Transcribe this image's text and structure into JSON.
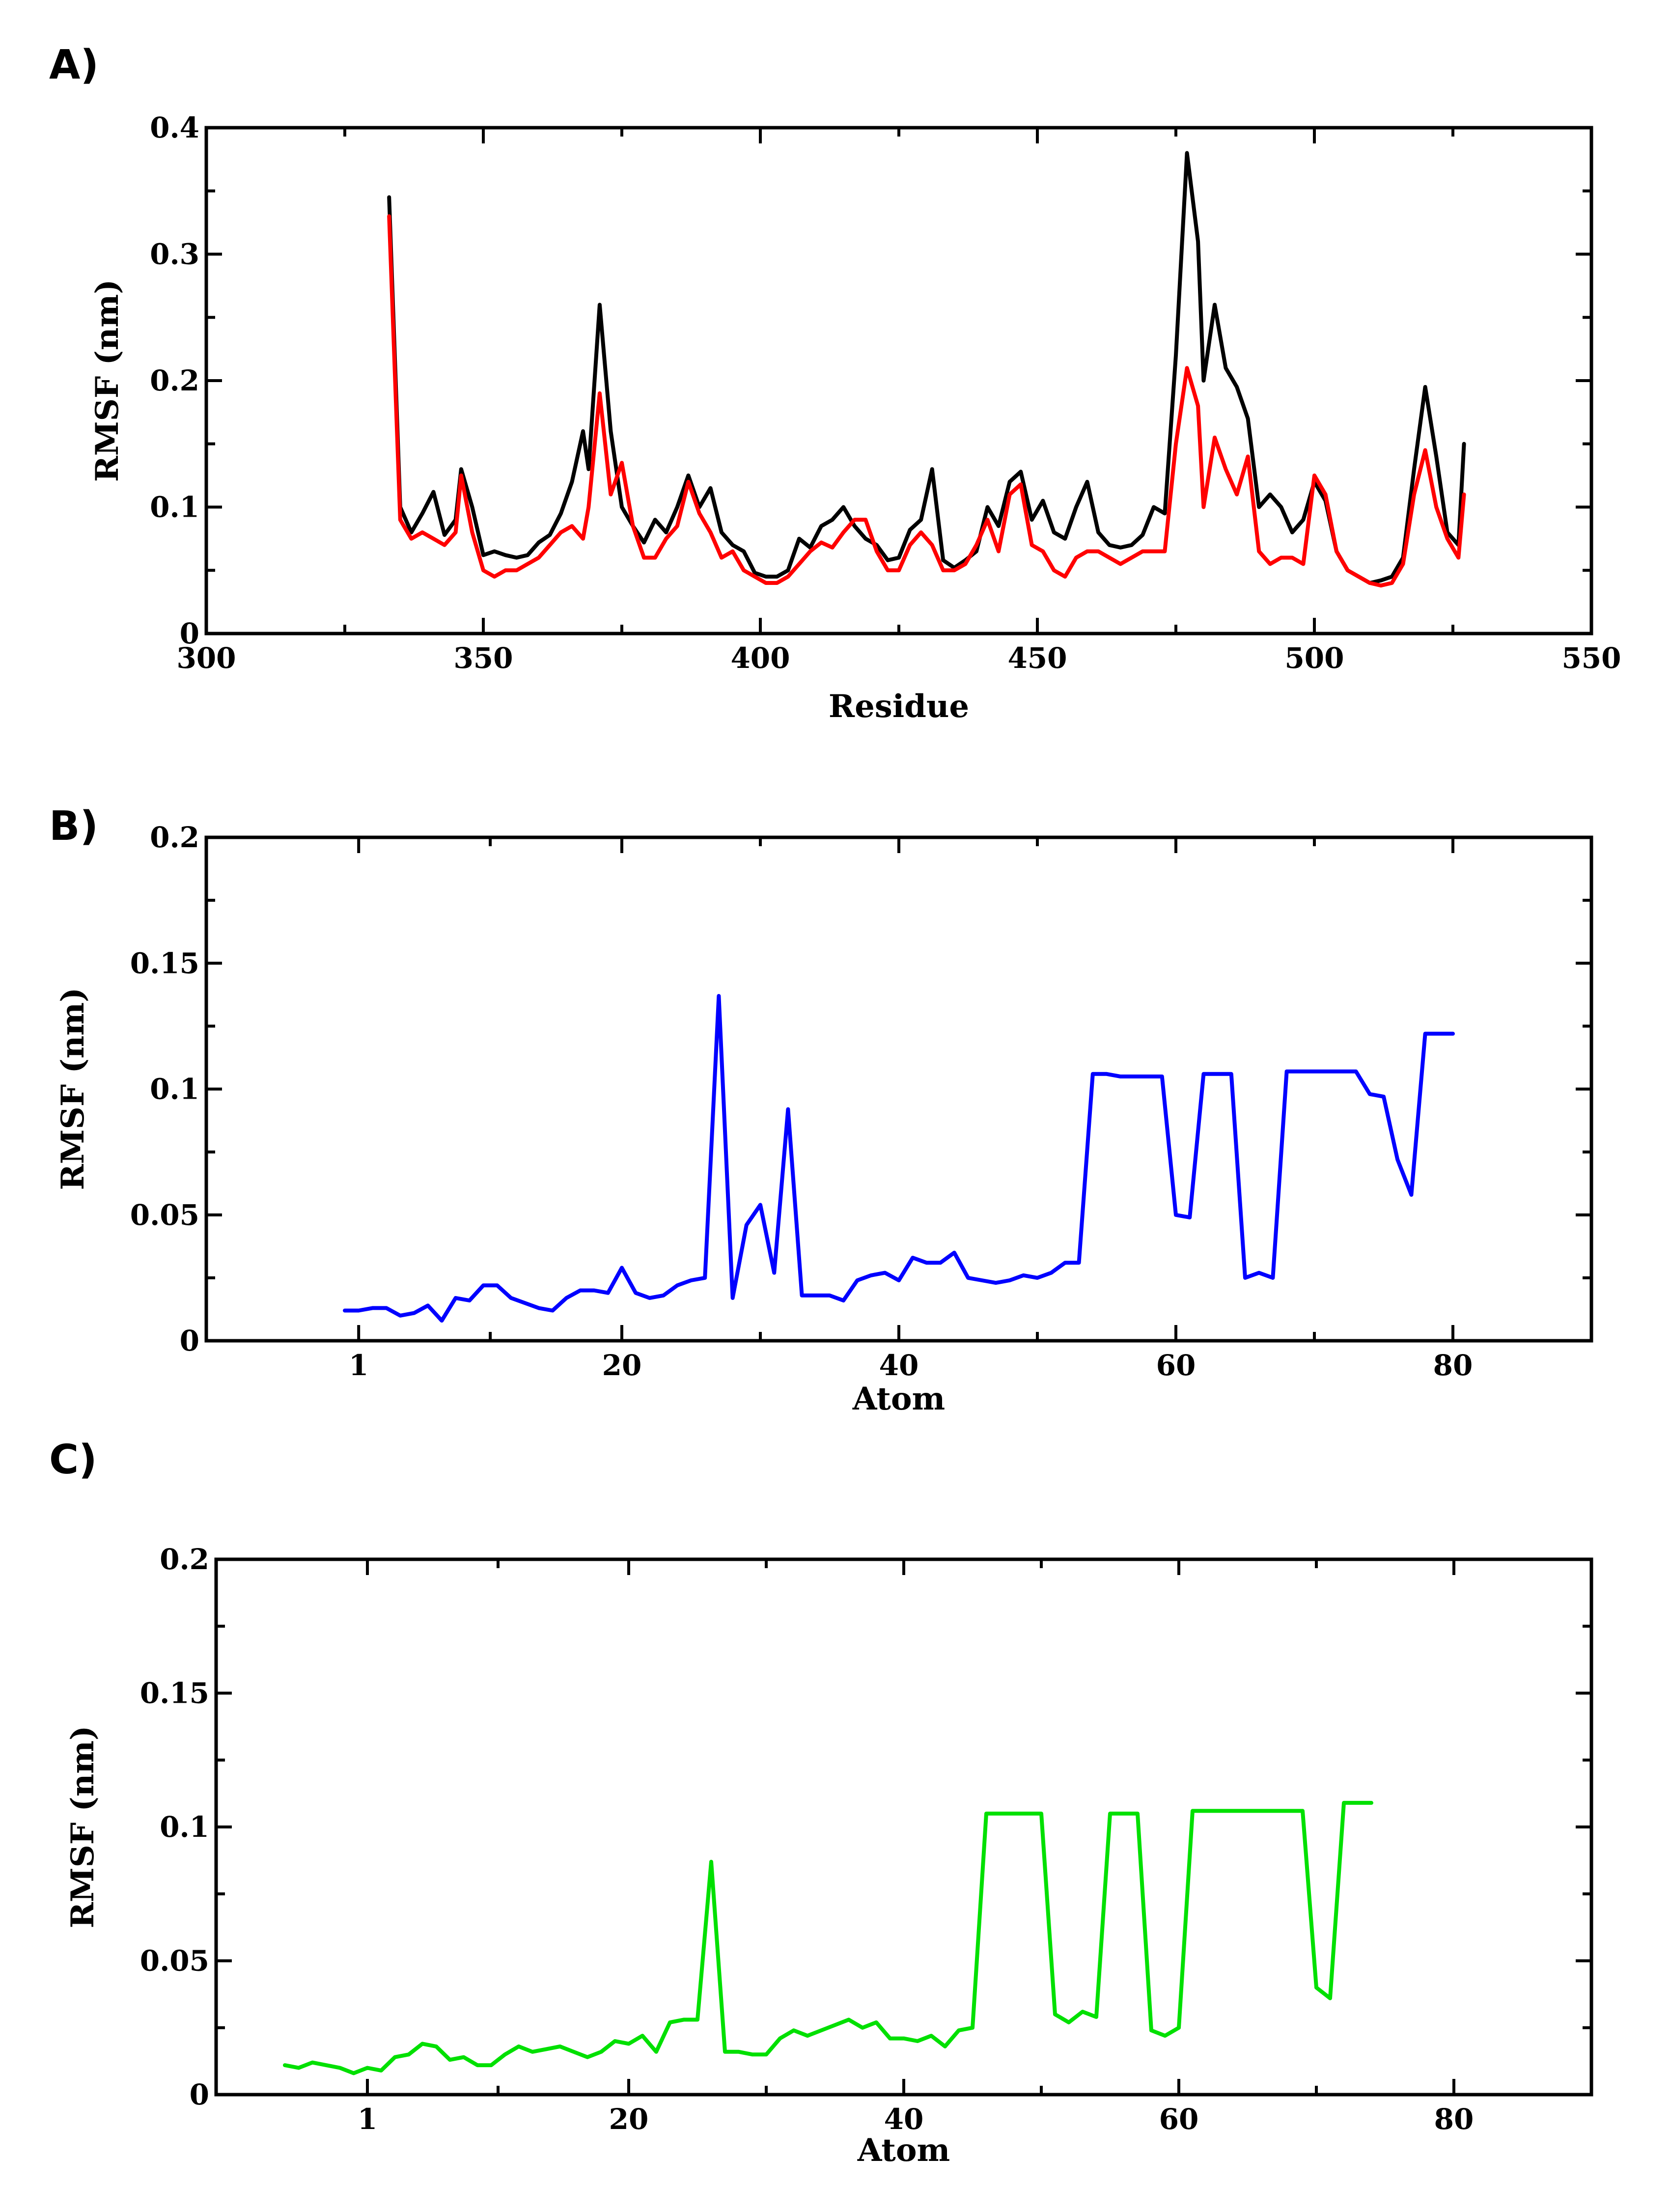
{
  "chart_data": [
    {
      "panel_label": "A)",
      "type": "line",
      "title": "",
      "xlabel": "Residue",
      "ylabel": "RMSF (nm)",
      "xlim": [
        300,
        550
      ],
      "ylim": [
        0,
        0.4
      ],
      "x_ticks": [
        300,
        350,
        400,
        450,
        500,
        550
      ],
      "x_tick_labels": [
        "300",
        "350",
        "400",
        "450",
        "500",
        "550"
      ],
      "y_ticks": [
        0,
        0.1,
        0.2,
        0.3,
        0.4
      ],
      "y_tick_labels": [
        "0",
        "0.1",
        "0.2",
        "0.3",
        "0.4"
      ],
      "grid": false,
      "series": [
        {
          "name": "black",
          "color": "#000000",
          "x": [
            333,
            335,
            337,
            339,
            341,
            343,
            345,
            346,
            348,
            350,
            352,
            354,
            356,
            358,
            360,
            362,
            364,
            366,
            368,
            369,
            371,
            373,
            375,
            377,
            379,
            381,
            383,
            385,
            387,
            389,
            391,
            393,
            395,
            397,
            399,
            401,
            403,
            405,
            407,
            409,
            411,
            413,
            415,
            417,
            419,
            421,
            423,
            425,
            427,
            429,
            431,
            433,
            435,
            437,
            439,
            441,
            443,
            445,
            447,
            449,
            451,
            453,
            455,
            457,
            459,
            461,
            463,
            465,
            467,
            469,
            471,
            473,
            475,
            477,
            479,
            480,
            482,
            484,
            486,
            488,
            490,
            492,
            494,
            496,
            498,
            500,
            502,
            504,
            506,
            508,
            510,
            512,
            514,
            516,
            518,
            520,
            522,
            524,
            526,
            527
          ],
          "y": [
            0.345,
            0.1,
            0.08,
            0.095,
            0.112,
            0.078,
            0.09,
            0.13,
            0.1,
            0.062,
            0.065,
            0.062,
            0.06,
            0.062,
            0.072,
            0.078,
            0.095,
            0.12,
            0.16,
            0.13,
            0.26,
            0.16,
            0.1,
            0.085,
            0.072,
            0.09,
            0.08,
            0.1,
            0.125,
            0.1,
            0.115,
            0.08,
            0.07,
            0.065,
            0.048,
            0.045,
            0.045,
            0.05,
            0.075,
            0.068,
            0.085,
            0.09,
            0.1,
            0.085,
            0.075,
            0.07,
            0.058,
            0.06,
            0.082,
            0.09,
            0.13,
            0.058,
            0.052,
            0.058,
            0.065,
            0.1,
            0.085,
            0.12,
            0.128,
            0.09,
            0.105,
            0.08,
            0.075,
            0.1,
            0.12,
            0.08,
            0.07,
            0.068,
            0.07,
            0.078,
            0.1,
            0.095,
            0.22,
            0.38,
            0.31,
            0.2,
            0.26,
            0.21,
            0.195,
            0.17,
            0.1,
            0.11,
            0.1,
            0.08,
            0.09,
            0.12,
            0.105,
            0.065,
            0.05,
            0.045,
            0.04,
            0.042,
            0.045,
            0.06,
            0.13,
            0.195,
            0.14,
            0.08,
            0.07,
            0.15
          ]
        },
        {
          "name": "red",
          "color": "#ff0000",
          "x": [
            333,
            335,
            337,
            339,
            341,
            343,
            345,
            346,
            348,
            350,
            352,
            354,
            356,
            358,
            360,
            362,
            364,
            366,
            368,
            369,
            371,
            373,
            375,
            377,
            379,
            381,
            383,
            385,
            387,
            389,
            391,
            393,
            395,
            397,
            399,
            401,
            403,
            405,
            407,
            409,
            411,
            413,
            415,
            417,
            419,
            421,
            423,
            425,
            427,
            429,
            431,
            433,
            435,
            437,
            439,
            441,
            443,
            445,
            447,
            449,
            451,
            453,
            455,
            457,
            459,
            461,
            463,
            465,
            467,
            469,
            471,
            473,
            475,
            477,
            479,
            480,
            482,
            484,
            486,
            488,
            490,
            492,
            494,
            496,
            498,
            500,
            502,
            504,
            506,
            508,
            510,
            512,
            514,
            516,
            518,
            520,
            522,
            524,
            526,
            527
          ],
          "y": [
            0.33,
            0.09,
            0.075,
            0.08,
            0.075,
            0.07,
            0.08,
            0.125,
            0.08,
            0.05,
            0.045,
            0.05,
            0.05,
            0.055,
            0.06,
            0.07,
            0.08,
            0.085,
            0.075,
            0.1,
            0.19,
            0.11,
            0.135,
            0.085,
            0.06,
            0.06,
            0.075,
            0.085,
            0.12,
            0.095,
            0.08,
            0.06,
            0.065,
            0.05,
            0.045,
            0.04,
            0.04,
            0.045,
            0.055,
            0.065,
            0.072,
            0.068,
            0.08,
            0.09,
            0.09,
            0.065,
            0.05,
            0.05,
            0.07,
            0.08,
            0.07,
            0.05,
            0.05,
            0.055,
            0.07,
            0.09,
            0.065,
            0.11,
            0.118,
            0.07,
            0.065,
            0.05,
            0.045,
            0.06,
            0.065,
            0.065,
            0.06,
            0.055,
            0.06,
            0.065,
            0.065,
            0.065,
            0.15,
            0.21,
            0.18,
            0.1,
            0.155,
            0.13,
            0.11,
            0.14,
            0.065,
            0.055,
            0.06,
            0.06,
            0.055,
            0.125,
            0.11,
            0.065,
            0.05,
            0.045,
            0.04,
            0.038,
            0.04,
            0.055,
            0.11,
            0.145,
            0.1,
            0.075,
            0.06,
            0.11
          ]
        }
      ]
    },
    {
      "panel_label": "B)",
      "type": "line",
      "title": "",
      "xlabel": "Atom",
      "ylabel": "RMSF (nm)",
      "xlim": [
        -10,
        90
      ],
      "ylim": [
        0,
        0.2
      ],
      "x_ticks": [
        1,
        20,
        40,
        60,
        80
      ],
      "x_tick_labels": [
        "1",
        "20",
        "40",
        "60",
        "80"
      ],
      "y_ticks": [
        0,
        0.05,
        0.1,
        0.15,
        0.2
      ],
      "y_tick_labels": [
        "0",
        "0.05",
        "0.1",
        "0.15",
        "0.2"
      ],
      "grid": false,
      "series": [
        {
          "name": "blue",
          "color": "#0000ff",
          "x": [
            0,
            1,
            2,
            3,
            4,
            5,
            6,
            7,
            8,
            9,
            10,
            11,
            12,
            13,
            14,
            15,
            16,
            17,
            18,
            19,
            20,
            21,
            22,
            23,
            24,
            25,
            26,
            27,
            28,
            29,
            30,
            31,
            32,
            33,
            34,
            35,
            36,
            37,
            38,
            39,
            40,
            41,
            42,
            43,
            44,
            45,
            46,
            47,
            48,
            49,
            50,
            51,
            52,
            53,
            54,
            55,
            56,
            57,
            58,
            59,
            60,
            61,
            62,
            63,
            64,
            65,
            66,
            67,
            68,
            69,
            70,
            71,
            72,
            73,
            74,
            75,
            76,
            77,
            78,
            79,
            80
          ],
          "y": [
            0.012,
            0.012,
            0.013,
            0.013,
            0.01,
            0.011,
            0.014,
            0.008,
            0.017,
            0.016,
            0.022,
            0.022,
            0.017,
            0.015,
            0.013,
            0.012,
            0.017,
            0.02,
            0.02,
            0.019,
            0.029,
            0.019,
            0.017,
            0.018,
            0.022,
            0.024,
            0.025,
            0.137,
            0.017,
            0.046,
            0.054,
            0.027,
            0.092,
            0.018,
            0.018,
            0.018,
            0.016,
            0.024,
            0.026,
            0.027,
            0.024,
            0.033,
            0.031,
            0.031,
            0.035,
            0.025,
            0.024,
            0.023,
            0.024,
            0.026,
            0.025,
            0.027,
            0.031,
            0.031,
            0.106,
            0.106,
            0.105,
            0.105,
            0.105,
            0.105,
            0.05,
            0.049,
            0.106,
            0.106,
            0.106,
            0.025,
            0.027,
            0.025,
            0.107,
            0.107,
            0.107,
            0.107,
            0.107,
            0.107,
            0.098,
            0.097,
            0.072,
            0.058,
            0.122,
            0.122,
            0.122
          ]
        }
      ]
    },
    {
      "panel_label": "C)",
      "type": "line",
      "title": "",
      "xlabel": "Atom",
      "ylabel": "RMSF (nm)",
      "xlim": [
        -10,
        90
      ],
      "ylim": [
        0,
        0.2
      ],
      "x_ticks": [
        1,
        20,
        40,
        60,
        80
      ],
      "x_tick_labels": [
        "1",
        "20",
        "40",
        "60",
        "80"
      ],
      "y_ticks": [
        0,
        0.05,
        0.1,
        0.15,
        0.2
      ],
      "y_tick_labels": [
        "0",
        "0.05",
        "0.1",
        "0.15",
        "0.2"
      ],
      "grid": false,
      "series": [
        {
          "name": "green",
          "color": "#00e000",
          "x": [
            -5,
            -4,
            -3,
            -2,
            -1,
            0,
            1,
            2,
            3,
            4,
            5,
            6,
            7,
            8,
            9,
            10,
            11,
            12,
            13,
            14,
            15,
            16,
            17,
            18,
            19,
            20,
            21,
            22,
            23,
            24,
            25,
            26,
            27,
            28,
            29,
            30,
            31,
            32,
            33,
            34,
            35,
            36,
            37,
            38,
            39,
            40,
            41,
            42,
            43,
            44,
            45,
            46,
            47,
            48,
            49,
            50,
            51,
            52,
            53,
            54,
            55,
            56,
            57,
            58,
            59,
            60,
            61,
            62,
            63,
            64,
            65,
            66,
            67,
            68,
            69,
            70,
            71,
            72,
            73,
            74
          ],
          "y": [
            0.011,
            0.01,
            0.012,
            0.011,
            0.01,
            0.008,
            0.01,
            0.009,
            0.014,
            0.015,
            0.019,
            0.018,
            0.013,
            0.014,
            0.011,
            0.011,
            0.015,
            0.018,
            0.016,
            0.017,
            0.018,
            0.016,
            0.014,
            0.016,
            0.02,
            0.019,
            0.022,
            0.016,
            0.027,
            0.028,
            0.028,
            0.087,
            0.016,
            0.016,
            0.015,
            0.015,
            0.021,
            0.024,
            0.022,
            0.024,
            0.026,
            0.028,
            0.025,
            0.027,
            0.021,
            0.021,
            0.02,
            0.022,
            0.018,
            0.024,
            0.025,
            0.105,
            0.105,
            0.105,
            0.105,
            0.105,
            0.03,
            0.027,
            0.031,
            0.029,
            0.105,
            0.105,
            0.105,
            0.024,
            0.022,
            0.025,
            0.106,
            0.106,
            0.106,
            0.106,
            0.106,
            0.106,
            0.106,
            0.106,
            0.106,
            0.04,
            0.036,
            0.109,
            0.109,
            0.109
          ]
        }
      ]
    }
  ]
}
